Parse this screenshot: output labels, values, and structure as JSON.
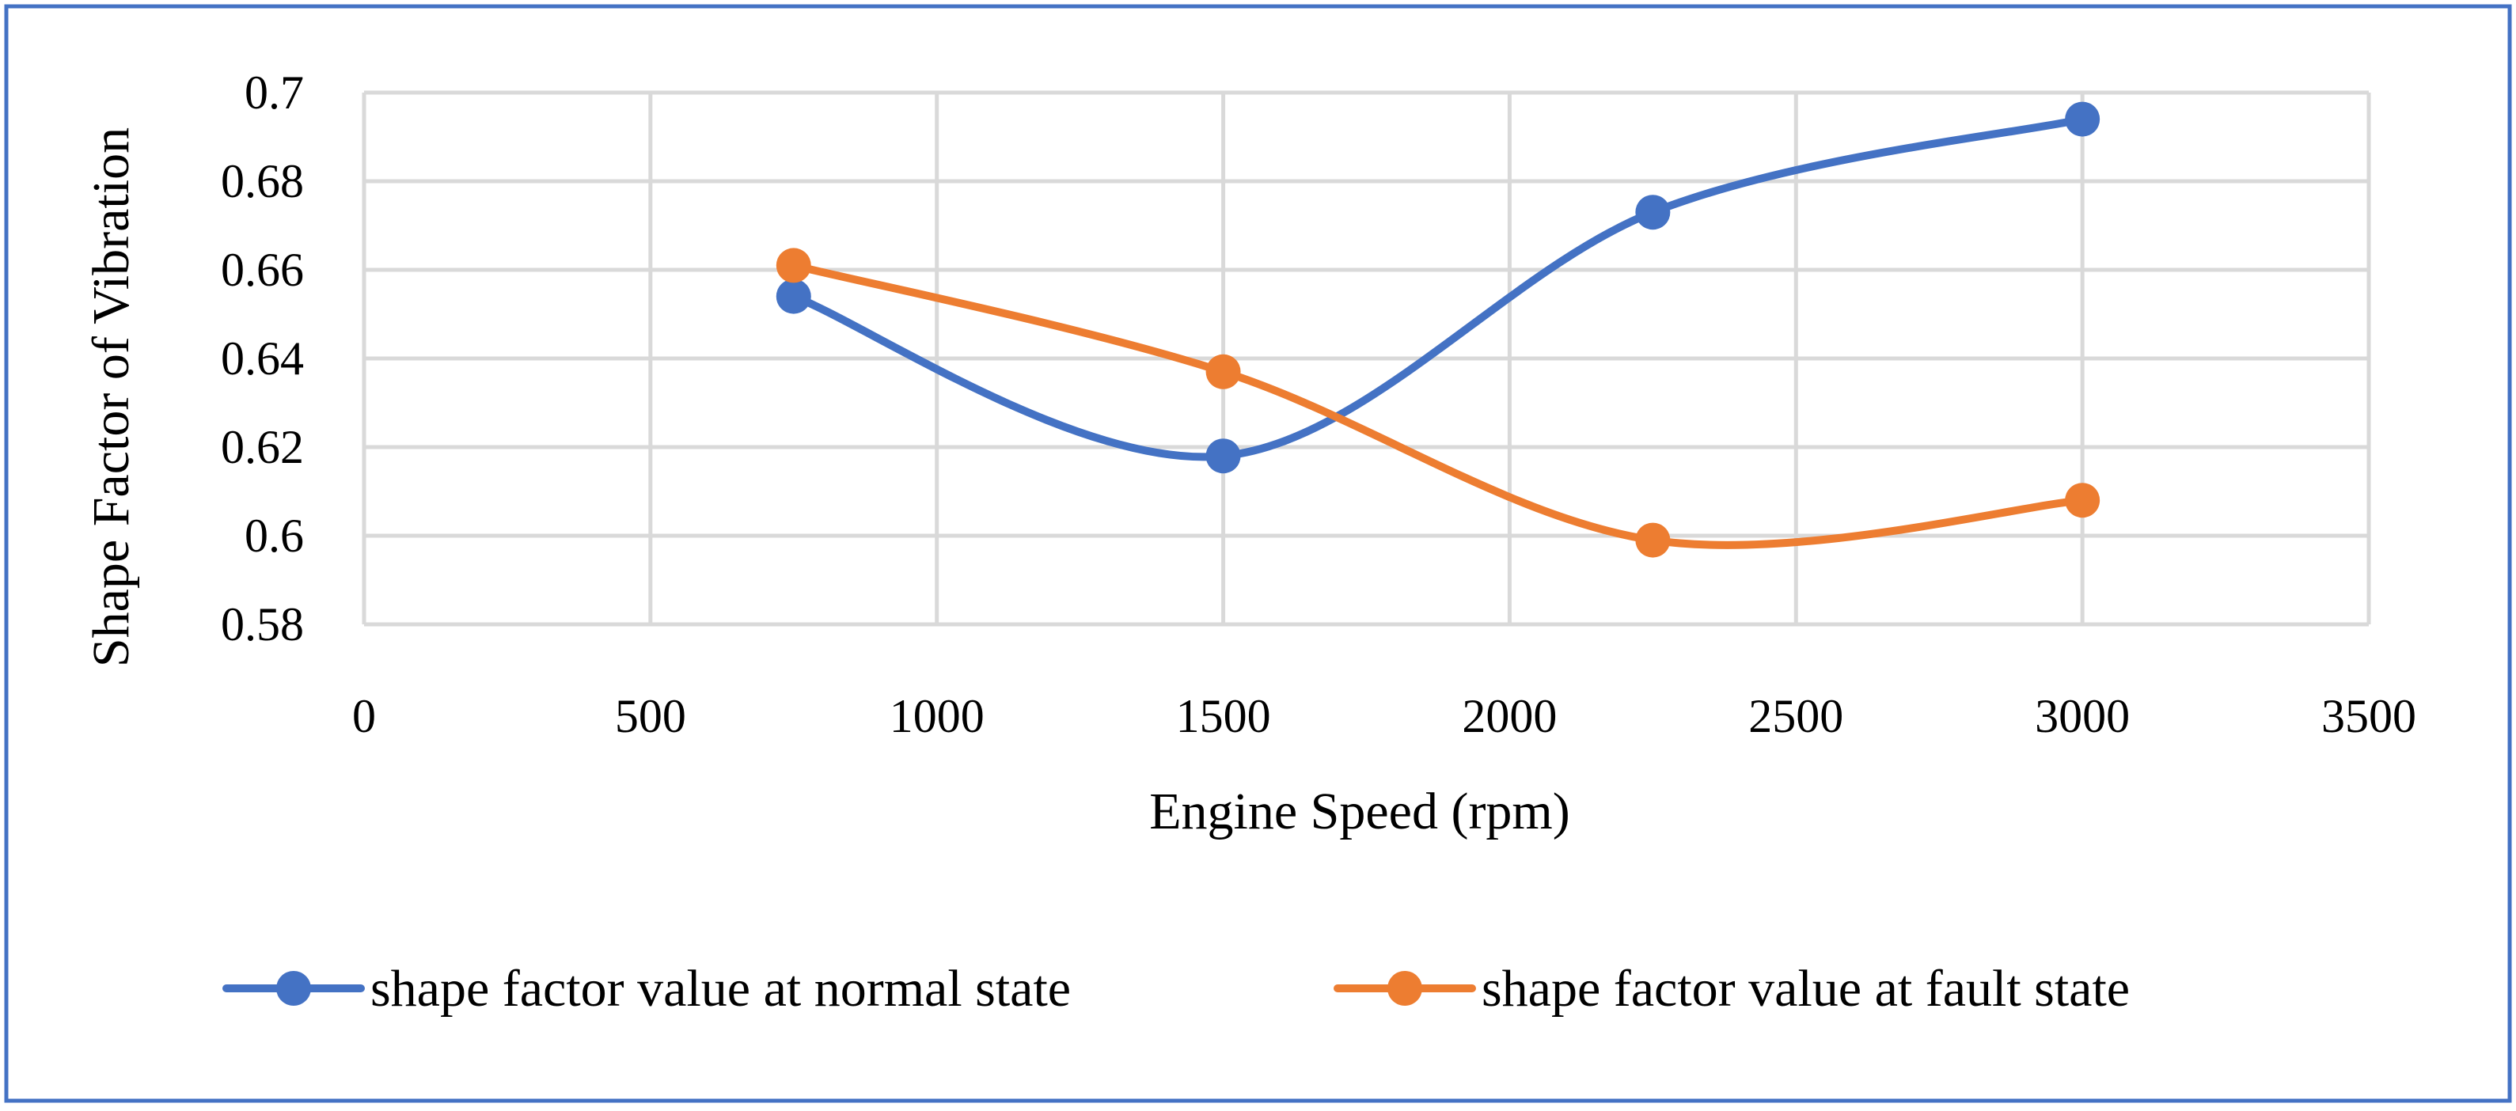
{
  "chart_data": {
    "type": "line",
    "smoothed": true,
    "xlabel": "Engine Speed (rpm)",
    "ylabel": "Shape Factor of Vibration",
    "xlim": [
      0,
      3500
    ],
    "ylim": [
      0.58,
      0.7
    ],
    "x_ticks": [
      0,
      500,
      1000,
      1500,
      2000,
      2500,
      3000,
      3500
    ],
    "x_tick_labels": [
      "0",
      "500",
      "1000",
      "1500",
      "2000",
      "2500",
      "3000",
      "3500"
    ],
    "y_ticks": [
      0.58,
      0.6,
      0.62,
      0.64,
      0.66,
      0.68,
      0.7
    ],
    "y_tick_labels": [
      "0.58",
      "0.6",
      "0.62",
      "0.64",
      "0.66",
      "0.68",
      "0.7"
    ],
    "grid": true,
    "legend_position": "bottom",
    "series": [
      {
        "name": "shape factor value at normal state",
        "color": "#4472C4",
        "x": [
          750,
          1500,
          2250,
          3000
        ],
        "y": [
          0.654,
          0.618,
          0.673,
          0.694
        ]
      },
      {
        "name": "shape factor value at fault state",
        "color": "#ED7D31",
        "x": [
          750,
          1500,
          2250,
          3000
        ],
        "y": [
          0.661,
          0.637,
          0.599,
          0.608
        ]
      }
    ],
    "border_color": "#4472C4",
    "grid_color": "#D9D9D9"
  }
}
